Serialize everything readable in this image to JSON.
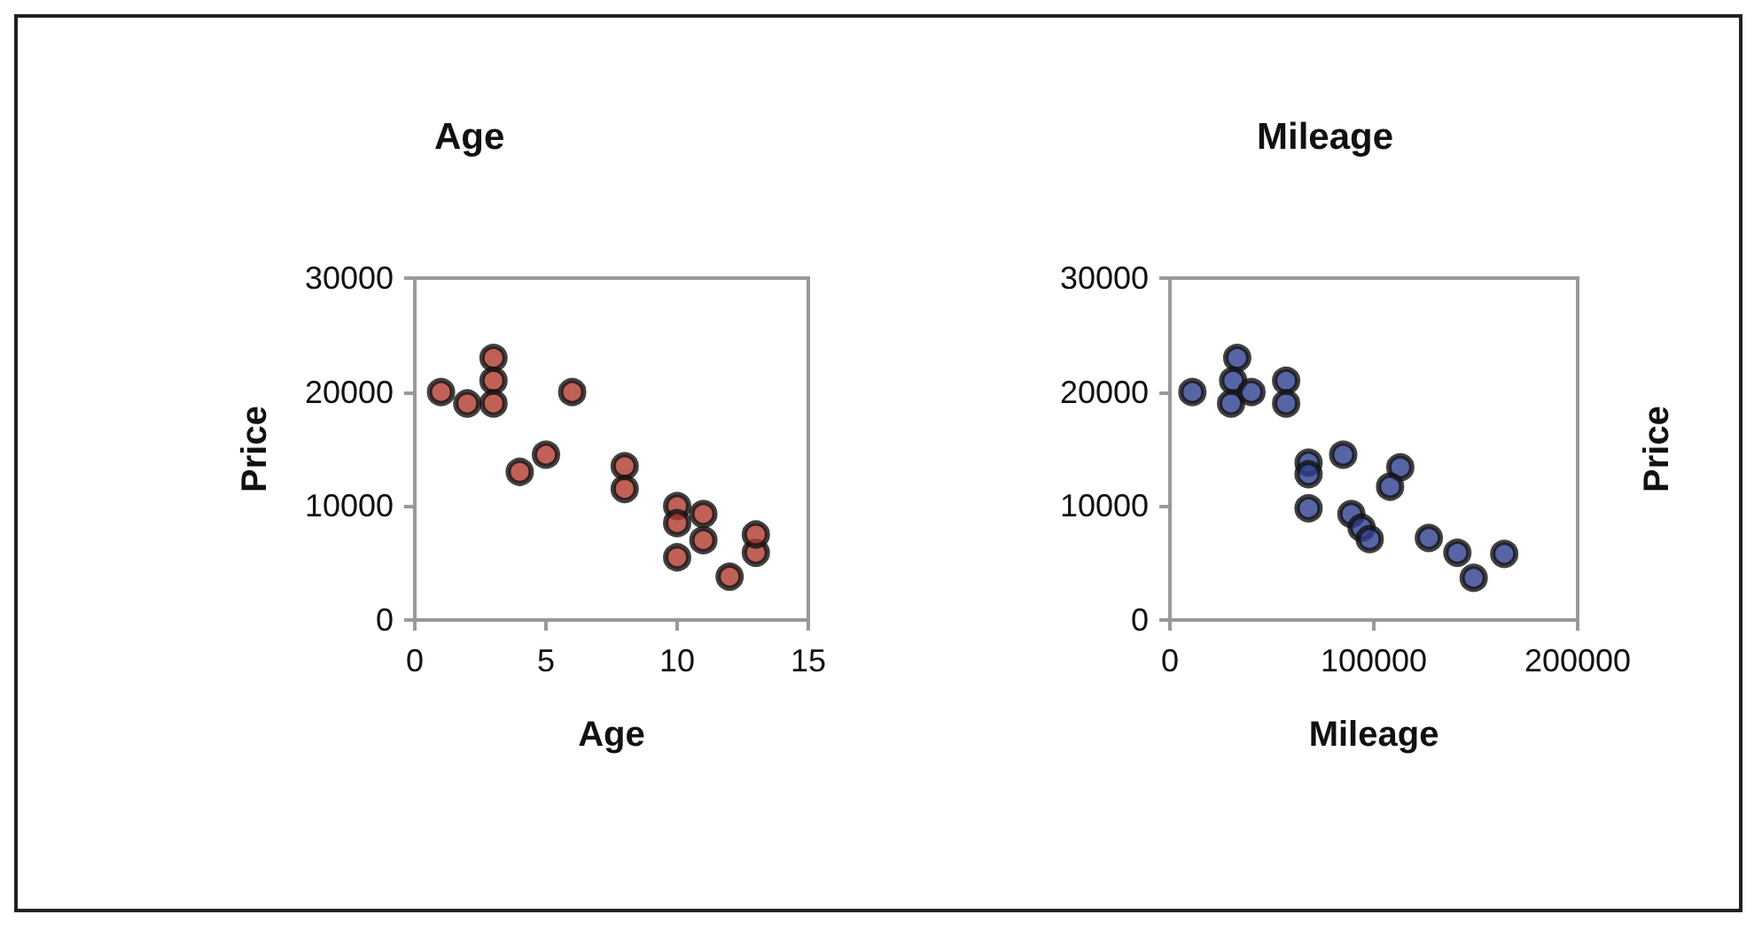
{
  "chart_data": [
    {
      "type": "scatter",
      "title": "Age",
      "xlabel": "Age",
      "ylabel": "Price",
      "marker": "circle",
      "grid": false,
      "xlim": [
        0,
        15
      ],
      "xticks": [
        0,
        5,
        10,
        15
      ],
      "ylim": [
        0,
        30000
      ],
      "yticks": [
        0,
        10000,
        20000,
        30000
      ],
      "series": [
        {
          "color": "#b03a2e",
          "x": [
            1,
            2,
            3,
            3,
            3,
            6,
            4,
            5,
            8,
            8,
            10,
            10,
            10,
            11,
            11,
            12,
            13,
            13
          ],
          "values": [
            20000,
            19000,
            23000,
            21000,
            19000,
            20000,
            13000,
            14500,
            13500,
            11500,
            10000,
            8500,
            5500,
            9300,
            7000,
            3800,
            5900,
            7500
          ]
        }
      ]
    },
    {
      "type": "scatter",
      "title": "Mileage",
      "xlabel": "Mileage",
      "ylabel": "Price",
      "marker": "circle",
      "grid": false,
      "xlim": [
        0,
        200000
      ],
      "xticks": [
        0,
        100000,
        200000
      ],
      "ylim": [
        0,
        30000
      ],
      "yticks": [
        0,
        10000,
        20000,
        30000
      ],
      "series": [
        {
          "color": "#2e3f8f",
          "x": [
            11000,
            33000,
            31000,
            30000,
            40000,
            57000,
            57000,
            68000,
            68000,
            68000,
            85000,
            89000,
            94000,
            98000,
            113000,
            108000,
            127000,
            141000,
            149000,
            164000
          ],
          "values": [
            20000,
            23000,
            21000,
            19000,
            20000,
            21000,
            19000,
            13800,
            12800,
            9800,
            14500,
            9300,
            8100,
            7100,
            13400,
            11700,
            7200,
            5900,
            3700,
            5800
          ]
        }
      ]
    }
  ]
}
